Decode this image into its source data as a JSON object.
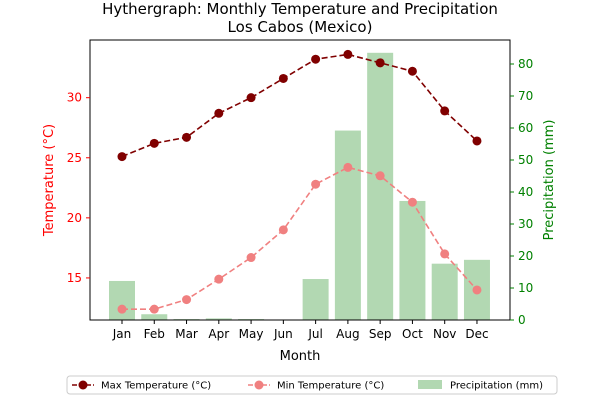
{
  "chart_data": {
    "type": "bar+line",
    "title": "Hythergraph: Monthly Temperature and Precipitation",
    "subtitle": "Los Cabos (Mexico)",
    "xlabel": "Month",
    "ylabel_left": "Temperature (°C)",
    "ylabel_right": "Precipitation (mm)",
    "categories": [
      "Jan",
      "Feb",
      "Mar",
      "Apr",
      "May",
      "Jun",
      "Jul",
      "Aug",
      "Sep",
      "Oct",
      "Nov",
      "Dec"
    ],
    "ylim_left": [
      11.5,
      34.8
    ],
    "ylim_right": [
      0,
      87.5
    ],
    "yticks_left": [
      15,
      20,
      25,
      30
    ],
    "yticks_right": [
      0,
      10,
      20,
      30,
      40,
      50,
      60,
      70,
      80
    ],
    "grid": false,
    "legend_placement": "bottom-center",
    "series": [
      {
        "name": "Max Temperature (°C)",
        "kind": "line",
        "axis": "left",
        "color": "#800000",
        "dashed": true,
        "values": [
          25.1,
          26.2,
          26.7,
          28.7,
          30.0,
          31.6,
          33.2,
          33.6,
          32.9,
          32.2,
          28.9,
          26.4
        ]
      },
      {
        "name": "Min Temperature (°C)",
        "kind": "line",
        "axis": "left",
        "color": "#f08080",
        "dashed": true,
        "values": [
          12.4,
          12.4,
          13.2,
          14.9,
          16.7,
          19.0,
          22.8,
          24.2,
          23.5,
          21.3,
          17.0,
          14.0
        ]
      },
      {
        "name": "Precipitation (mm)",
        "kind": "bar",
        "axis": "right",
        "color": "#b2d8b2",
        "values": [
          12.2,
          1.8,
          0.3,
          0.5,
          0.3,
          0.1,
          12.8,
          59.2,
          83.5,
          37.2,
          17.6,
          18.8
        ]
      }
    ],
    "colors": {
      "left_axis": "#ff0000",
      "right_axis": "#008000",
      "frame": "#000000"
    }
  }
}
